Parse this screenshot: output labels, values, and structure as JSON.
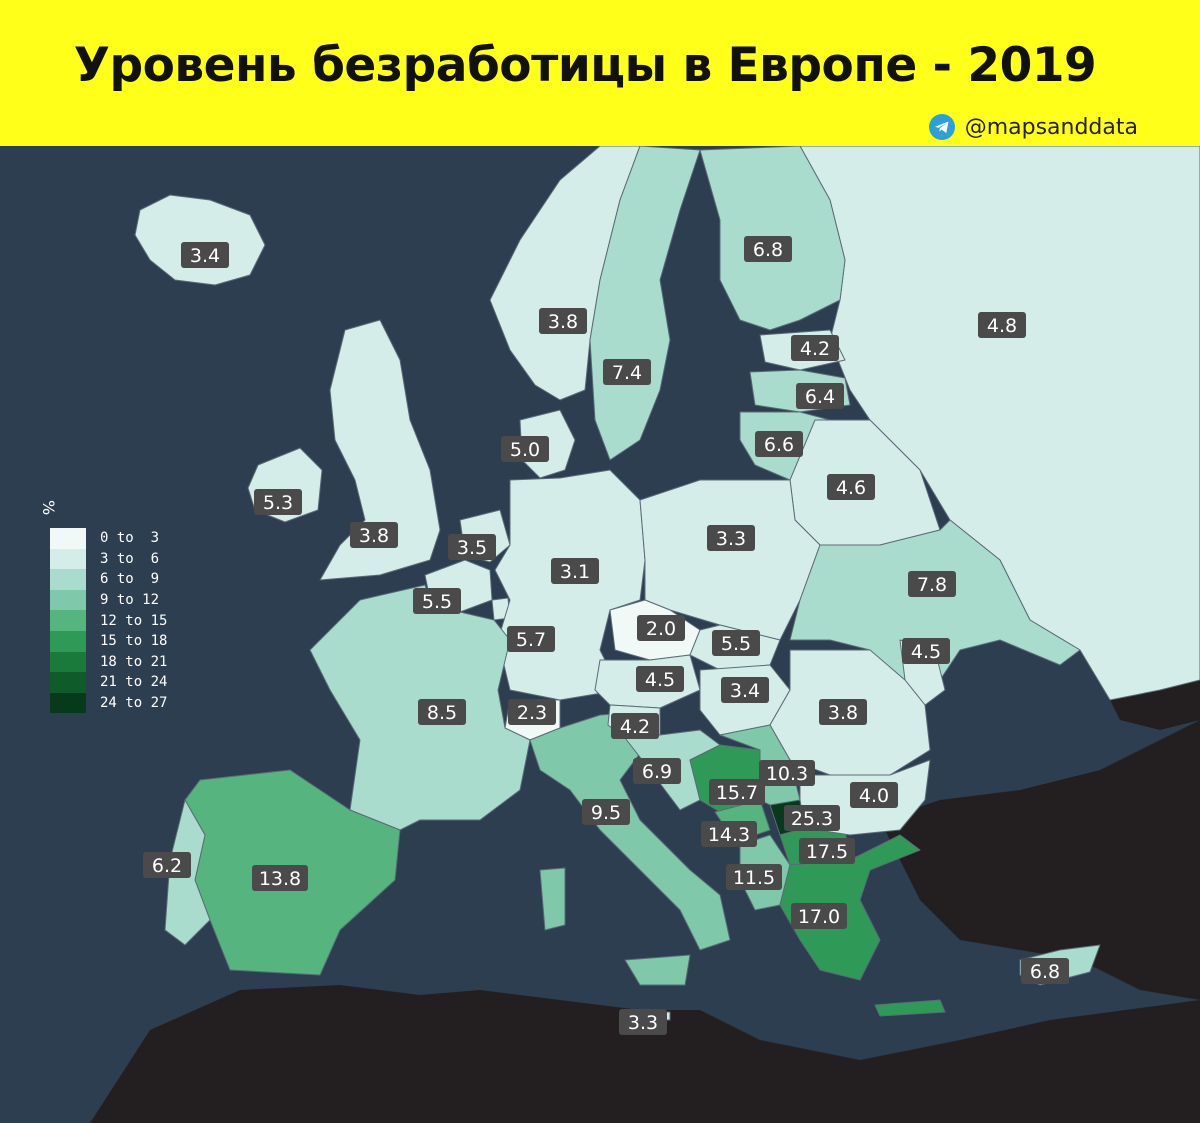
{
  "header": {
    "title": "Уровень безработицы в Европе - 2019",
    "credit": "@mapsanddata"
  },
  "legend": {
    "unit": "%",
    "items": [
      {
        "label": "0 to  3",
        "color": "#f1f9f7"
      },
      {
        "label": "3 to  6",
        "color": "#d5ede8"
      },
      {
        "label": "6 to  9",
        "color": "#a9dccd"
      },
      {
        "label": "9 to 12",
        "color": "#7fc8a9"
      },
      {
        "label": "12 to 15",
        "color": "#56b47e"
      },
      {
        "label": "15 to 18",
        "color": "#2f9a57"
      },
      {
        "label": "18 to 21",
        "color": "#1a7a3c"
      },
      {
        "label": "21 to 24",
        "color": "#0f5c2a"
      },
      {
        "label": "24 to 27",
        "color": "#073a1a"
      }
    ]
  },
  "colors": {
    "sea": "#2d3e50",
    "non_europe": "#231f20",
    "header_bg": "#ffff1a",
    "label_bg": "#4a4a4a"
  },
  "map_data": {
    "type": "choropleth",
    "values": [
      {
        "id": "iceland",
        "value": "3.4"
      },
      {
        "id": "norway",
        "value": "3.8"
      },
      {
        "id": "sweden",
        "value": "7.4"
      },
      {
        "id": "finland",
        "value": "6.8"
      },
      {
        "id": "russia",
        "value": "4.8"
      },
      {
        "id": "estonia",
        "value": "4.2"
      },
      {
        "id": "latvia",
        "value": "6.4"
      },
      {
        "id": "lithuania",
        "value": "6.6"
      },
      {
        "id": "denmark",
        "value": "5.0"
      },
      {
        "id": "ireland",
        "value": "5.3"
      },
      {
        "id": "uk",
        "value": "3.8"
      },
      {
        "id": "netherlands",
        "value": "3.5"
      },
      {
        "id": "belgium",
        "value": "5.5"
      },
      {
        "id": "germany",
        "value": "3.1"
      },
      {
        "id": "poland",
        "value": "3.3"
      },
      {
        "id": "belarus",
        "value": "4.6"
      },
      {
        "id": "ukraine",
        "value": "7.8"
      },
      {
        "id": "luxembourg",
        "value": "5.7"
      },
      {
        "id": "czechia",
        "value": "2.0"
      },
      {
        "id": "slovakia",
        "value": "5.5"
      },
      {
        "id": "moldova",
        "value": "4.5"
      },
      {
        "id": "austria",
        "value": "4.5"
      },
      {
        "id": "hungary",
        "value": "3.4"
      },
      {
        "id": "romania",
        "value": "3.8"
      },
      {
        "id": "france",
        "value": "8.5"
      },
      {
        "id": "switzerland",
        "value": "2.3"
      },
      {
        "id": "slovenia",
        "value": "4.2"
      },
      {
        "id": "croatia",
        "value": "6.9"
      },
      {
        "id": "bosnia",
        "value": "15.7"
      },
      {
        "id": "serbia",
        "value": "10.3"
      },
      {
        "id": "bulgaria",
        "value": "4.0"
      },
      {
        "id": "kosovo",
        "value": "25.3"
      },
      {
        "id": "montenegro",
        "value": "14.3"
      },
      {
        "id": "north_macedonia",
        "value": "17.5"
      },
      {
        "id": "albania",
        "value": "11.5"
      },
      {
        "id": "greece",
        "value": "17.0"
      },
      {
        "id": "italy",
        "value": "9.5"
      },
      {
        "id": "spain",
        "value": "13.8"
      },
      {
        "id": "portugal",
        "value": "6.2"
      },
      {
        "id": "cyprus",
        "value": "6.8"
      },
      {
        "id": "malta",
        "value": "3.3"
      }
    ]
  }
}
